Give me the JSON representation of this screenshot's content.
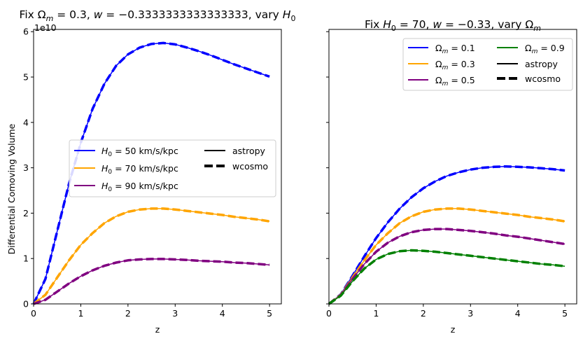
{
  "chart_data": [
    {
      "type": "line",
      "title": "Fix Ω_m = 0.3, w = −0.3333333333333333, vary H₀",
      "title_parts": {
        "prefix": "Fix ",
        "omega": "Ω",
        "omega_sub": "m",
        "mid": " = 0.3, ",
        "w": "w",
        "w_val": " = −0.3333333333333333, vary ",
        "h": "H",
        "h_sub": "0"
      },
      "xlabel": "z",
      "ylabel": "Differential Comoving Volume",
      "y_offset_label": "1e10",
      "xlim": [
        0,
        5.25
      ],
      "ylim": [
        0,
        6.05
      ],
      "x_ticks": [
        0,
        1,
        2,
        3,
        4,
        5
      ],
      "y_ticks": [
        0,
        1,
        2,
        3,
        4,
        5,
        6
      ],
      "y_scale_note": "values in units of 1e10",
      "grid": false,
      "legend_position": "center-right",
      "x": [
        0,
        0.25,
        0.5,
        0.75,
        1.0,
        1.25,
        1.5,
        1.75,
        2.0,
        2.25,
        2.5,
        2.75,
        3.0,
        3.25,
        3.5,
        3.75,
        4.0,
        4.25,
        4.5,
        4.75,
        5.0
      ],
      "series": [
        {
          "name": "H0 = 50 km/s/kpc",
          "label_h": "H",
          "label_sub": "0",
          "label_rest": " = 50 km/s/kpc",
          "color": "#0000ff",
          "values": [
            0,
            0.55,
            1.6,
            2.65,
            3.55,
            4.3,
            4.85,
            5.25,
            5.5,
            5.65,
            5.73,
            5.75,
            5.72,
            5.65,
            5.57,
            5.48,
            5.38,
            5.28,
            5.19,
            5.1,
            5.01
          ]
        },
        {
          "name": "H0 = 70 km/s/kpc",
          "label_h": "H",
          "label_sub": "0",
          "label_rest": " = 70 km/s/kpc",
          "color": "#ffa500",
          "values": [
            0,
            0.2,
            0.58,
            0.96,
            1.3,
            1.56,
            1.78,
            1.93,
            2.03,
            2.08,
            2.1,
            2.1,
            2.08,
            2.05,
            2.02,
            1.99,
            1.96,
            1.92,
            1.89,
            1.86,
            1.82
          ]
        },
        {
          "name": "H0 = 90 km/s/kpc",
          "label_h": "H",
          "label_sub": "0",
          "label_rest": " = 90 km/s/kpc",
          "color": "#800080",
          "values": [
            0,
            0.09,
            0.27,
            0.45,
            0.61,
            0.74,
            0.84,
            0.91,
            0.96,
            0.98,
            0.99,
            0.99,
            0.98,
            0.97,
            0.95,
            0.94,
            0.93,
            0.91,
            0.9,
            0.88,
            0.86
          ]
        }
      ],
      "style_legend": [
        {
          "label": "astropy",
          "style": "solid"
        },
        {
          "label": "wcosmo",
          "style": "dashed"
        }
      ]
    },
    {
      "type": "line",
      "title": "Fix H₀ = 70, w = −0.33, vary Ω_m",
      "title_parts": {
        "prefix": "Fix ",
        "h": "H",
        "h_sub": "0",
        "mid": " = 70, ",
        "w": "w",
        "w_val": " = −0.33, vary ",
        "omega": "Ω",
        "omega_sub": "m"
      },
      "xlabel": "z",
      "xlim": [
        0,
        5.25
      ],
      "ylim": [
        0,
        6.05
      ],
      "x_ticks": [
        0,
        1,
        2,
        3,
        4,
        5
      ],
      "sharey": true,
      "grid": false,
      "legend_position": "top-right",
      "x": [
        0,
        0.25,
        0.5,
        0.75,
        1.0,
        1.25,
        1.5,
        1.75,
        2.0,
        2.25,
        2.5,
        2.75,
        3.0,
        3.25,
        3.5,
        3.75,
        4.0,
        4.25,
        4.5,
        4.75,
        5.0
      ],
      "series": [
        {
          "name": "Ωm = 0.1",
          "label_o": "Ω",
          "label_sub": "m",
          "label_rest": " = 0.1",
          "color": "#0000ff",
          "values": [
            0,
            0.21,
            0.62,
            1.05,
            1.45,
            1.8,
            2.1,
            2.35,
            2.55,
            2.7,
            2.82,
            2.9,
            2.96,
            3.0,
            3.02,
            3.03,
            3.02,
            3.01,
            2.99,
            2.97,
            2.94
          ]
        },
        {
          "name": "Ωm = 0.3",
          "label_o": "Ω",
          "label_sub": "m",
          "label_rest": " = 0.3",
          "color": "#ffa500",
          "values": [
            0,
            0.2,
            0.58,
            0.96,
            1.3,
            1.56,
            1.78,
            1.93,
            2.03,
            2.08,
            2.1,
            2.1,
            2.08,
            2.05,
            2.02,
            1.99,
            1.96,
            1.92,
            1.89,
            1.86,
            1.82
          ]
        },
        {
          "name": "Ωm = 0.5",
          "label_o": "Ω",
          "label_sub": "m",
          "label_rest": " = 0.5",
          "color": "#800080",
          "values": [
            0,
            0.19,
            0.55,
            0.88,
            1.15,
            1.35,
            1.49,
            1.58,
            1.63,
            1.65,
            1.65,
            1.63,
            1.61,
            1.58,
            1.55,
            1.51,
            1.48,
            1.44,
            1.4,
            1.36,
            1.32
          ]
        },
        {
          "name": "Ωm = 0.9",
          "label_o": "Ω",
          "label_sub": "m",
          "label_rest": " = 0.9",
          "color": "#008000",
          "values": [
            0,
            0.18,
            0.5,
            0.78,
            0.98,
            1.1,
            1.16,
            1.18,
            1.17,
            1.15,
            1.12,
            1.09,
            1.06,
            1.03,
            1.0,
            0.97,
            0.94,
            0.91,
            0.88,
            0.86,
            0.83
          ]
        }
      ],
      "style_legend": [
        {
          "label": "astropy",
          "style": "solid"
        },
        {
          "label": "wcosmo",
          "style": "dashed"
        }
      ]
    }
  ]
}
